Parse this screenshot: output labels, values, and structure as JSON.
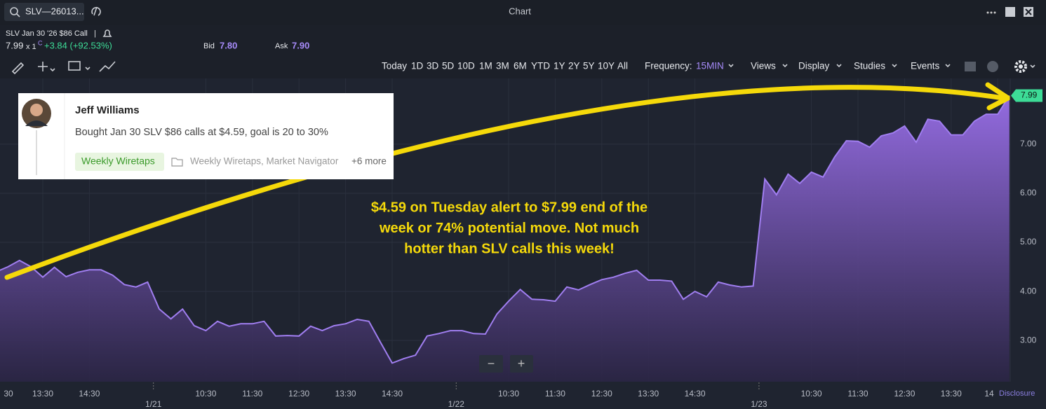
{
  "header": {
    "search": "SLV—26013...",
    "title": "Chart"
  },
  "quote": {
    "symbol": "SLV Jan 30 '26 $86 Call",
    "separator": "|",
    "last": "7.99",
    "size": "x 1",
    "flag": "C",
    "change": "+3.84 (+92.53%)",
    "bid_label": "Bid",
    "bid": "7.80",
    "ask_label": "Ask",
    "ask": "7.90"
  },
  "toolbar": {
    "ranges": [
      "Today",
      "1D",
      "3D",
      "5D",
      "10D",
      "1M",
      "3M",
      "6M",
      "YTD",
      "1Y",
      "2Y",
      "5Y",
      "10Y",
      "All"
    ],
    "frequency_label": "Frequency:",
    "frequency": "15MIN",
    "menus": [
      "Views",
      "Display",
      "Studies",
      "Events"
    ]
  },
  "card": {
    "author": "Jeff Williams",
    "message": "Bought Jan 30 SLV $86 calls at $4.59, goal is 20 to 30%",
    "tag": "Weekly Wiretaps",
    "folders": "Weekly Wiretaps, Market Navigator",
    "more": "+6 more"
  },
  "zoom": [
    "−",
    "+"
  ],
  "disclosure": "Disclosure",
  "chart_data": {
    "type": "area",
    "color": "#a07ef0",
    "grid": true,
    "annotation": [
      "$4.59 on Tuesday alert to $7.99 end of the",
      "week or 74% potential move. Not much",
      "hotter than SLV calls this week!"
    ],
    "ylim": [
      2.16,
      8.34
    ],
    "yticks": [
      {
        "value": 3,
        "label": "3.00"
      },
      {
        "value": 4,
        "label": "4.00"
      },
      {
        "value": 5,
        "label": "5.00"
      },
      {
        "value": 6,
        "label": "6.00"
      },
      {
        "value": 7,
        "label": "7.00"
      }
    ],
    "categories": [
      "30",
      null,
      null,
      null,
      "13:30",
      null,
      null,
      null,
      "14:30",
      null,
      null,
      null,
      null,
      null,
      null,
      null,
      null,
      null,
      "10:30",
      null,
      null,
      null,
      "11:30",
      null,
      null,
      null,
      "12:30",
      null,
      null,
      null,
      "13:30",
      null,
      null,
      null,
      "14:30",
      null,
      null,
      null,
      null,
      null,
      null,
      null,
      null,
      null,
      "10:30",
      null,
      null,
      null,
      "11:30",
      null,
      null,
      null,
      "12:30",
      null,
      null,
      null,
      "13:30",
      null,
      null,
      null,
      "14:30",
      null,
      null,
      null,
      null,
      null,
      null,
      null,
      null,
      null,
      "10:30",
      null,
      null,
      null,
      "11:30",
      null,
      null,
      null,
      "12:30",
      null,
      null,
      null,
      "13:30",
      null,
      null,
      null,
      "14",
      null
    ],
    "day_labels": [
      null,
      null,
      null,
      null,
      null,
      null,
      null,
      null,
      null,
      null,
      null,
      null,
      null,
      null,
      "1/21",
      null,
      null,
      null,
      null,
      null,
      null,
      null,
      null,
      null,
      null,
      null,
      null,
      null,
      null,
      null,
      null,
      null,
      null,
      null,
      null,
      null,
      null,
      null,
      null,
      null,
      "1/22",
      null,
      null,
      null,
      null,
      null,
      null,
      null,
      null,
      null,
      null,
      null,
      null,
      null,
      null,
      null,
      null,
      null,
      null,
      null,
      null,
      null,
      null,
      null,
      null,
      null,
      "1/23",
      null,
      null,
      null,
      null,
      null,
      null,
      null,
      null,
      null,
      null,
      null,
      null,
      null,
      null,
      null,
      null,
      null,
      null,
      null,
      null,
      null
    ],
    "values": [
      4.4,
      4.5,
      4.63,
      4.5,
      4.29,
      4.49,
      4.3,
      4.39,
      4.44,
      4.44,
      4.33,
      4.14,
      4.09,
      4.19,
      3.64,
      3.44,
      3.64,
      3.3,
      3.2,
      3.39,
      3.29,
      3.34,
      3.34,
      3.39,
      3.09,
      3.1,
      3.09,
      3.29,
      3.2,
      3.3,
      3.34,
      3.43,
      3.39,
      2.96,
      2.54,
      2.63,
      2.7,
      3.09,
      3.14,
      3.2,
      3.2,
      3.14,
      3.13,
      3.54,
      3.8,
      4.04,
      3.84,
      3.83,
      3.8,
      4.09,
      4.03,
      4.14,
      4.24,
      4.29,
      4.37,
      4.43,
      4.23,
      4.23,
      4.21,
      3.84,
      4.0,
      3.89,
      4.19,
      4.13,
      4.09,
      4.11,
      6.29,
      5.97,
      6.39,
      6.2,
      6.43,
      6.33,
      6.74,
      7.07,
      7.06,
      6.94,
      7.17,
      7.23,
      7.37,
      7.04,
      7.51,
      7.47,
      7.19,
      7.19,
      7.47,
      7.61,
      7.61,
      7.99
    ]
  }
}
